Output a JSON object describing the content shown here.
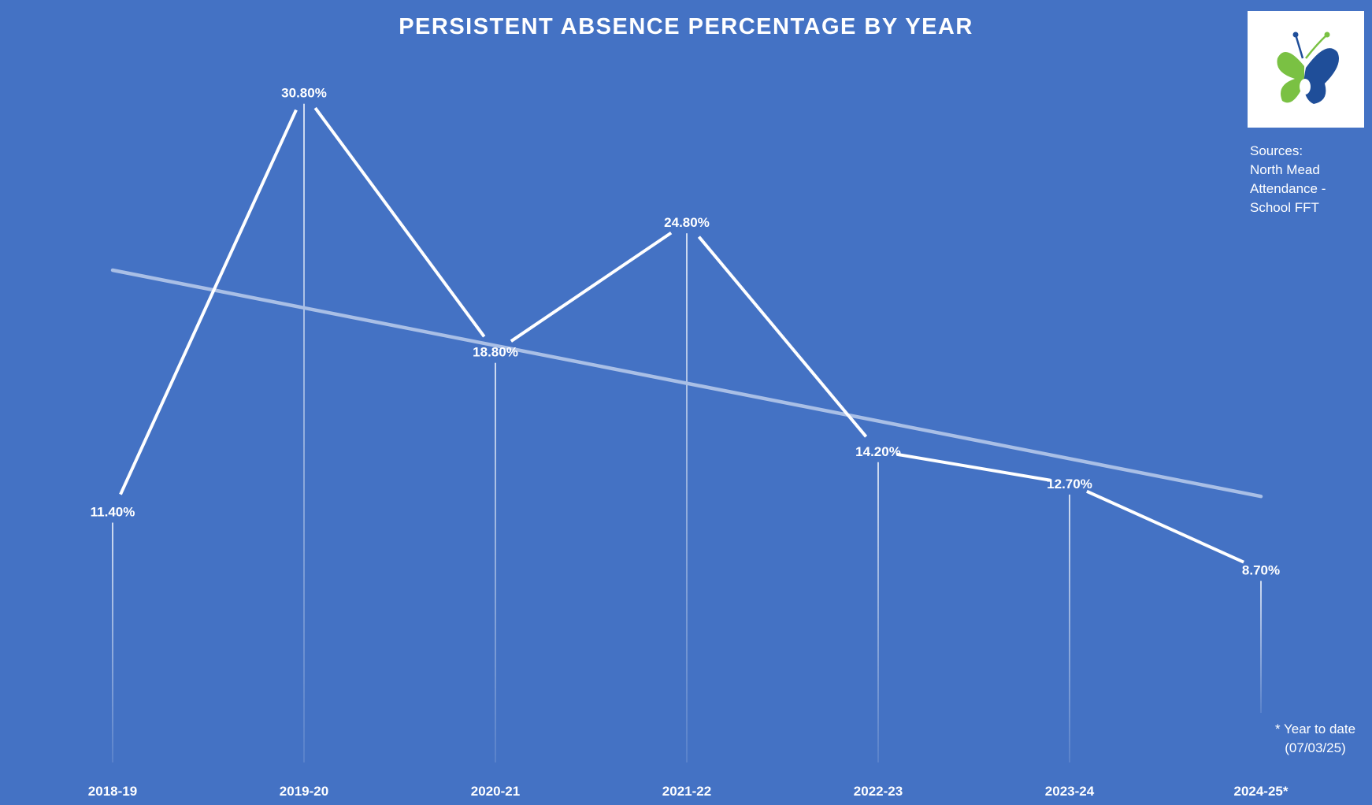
{
  "chart_data": {
    "type": "line",
    "title": "PERSISTENT ABSENCE PERCENTAGE BY YEAR",
    "categories": [
      "2018-19",
      "2019-20",
      "2020-21",
      "2021-22",
      "2022-23",
      "2023-24",
      "2024-25*"
    ],
    "series": [
      {
        "values": [
          11.4,
          30.8,
          18.8,
          24.8,
          14.2,
          12.7,
          8.7
        ],
        "data_labels": [
          "11.40%",
          "30.80%",
          "18.80%",
          "24.80%",
          "14.20%",
          "12.70%",
          "8.70%"
        ]
      }
    ],
    "trendline": {
      "type": "linear"
    },
    "ylim": [
      0,
      34
    ],
    "grid": false,
    "legend": "none",
    "drop_lines": true,
    "colors": {
      "background": "#4472c4",
      "line": "#ffffff",
      "trendline": "#a9bfe6"
    }
  },
  "logo": {
    "icon": "butterfly-logo-icon",
    "colors": {
      "green": "#7ac143",
      "blue": "#1f4e99"
    }
  },
  "sources": {
    "lines": [
      "Sources:",
      "North Mead",
      "Attendance -",
      "School FFT"
    ]
  },
  "footnote": {
    "lines": [
      "* Year to date",
      "(07/03/25)"
    ]
  }
}
